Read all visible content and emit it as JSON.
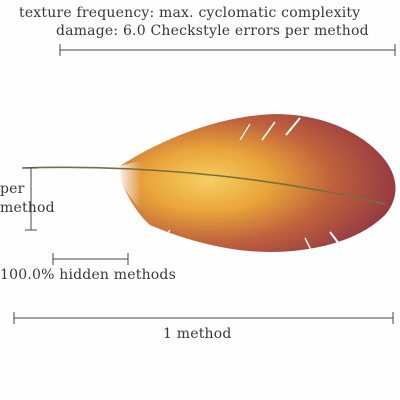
{
  "legend": {
    "texture_frequency": "texture frequency: max. cyclomatic complexity",
    "damage": "damage: 6.0 Checkstyle errors per method"
  },
  "scale_labels": {
    "per_method_top": "per",
    "per_method_bottom": "method",
    "hidden_methods": "100.0% hidden methods",
    "width_scale": "1 method"
  },
  "feather": {
    "color_outer": "#8e3a47",
    "color_inner": "#e8a63a",
    "shaft_color": "#7b6d3f"
  }
}
